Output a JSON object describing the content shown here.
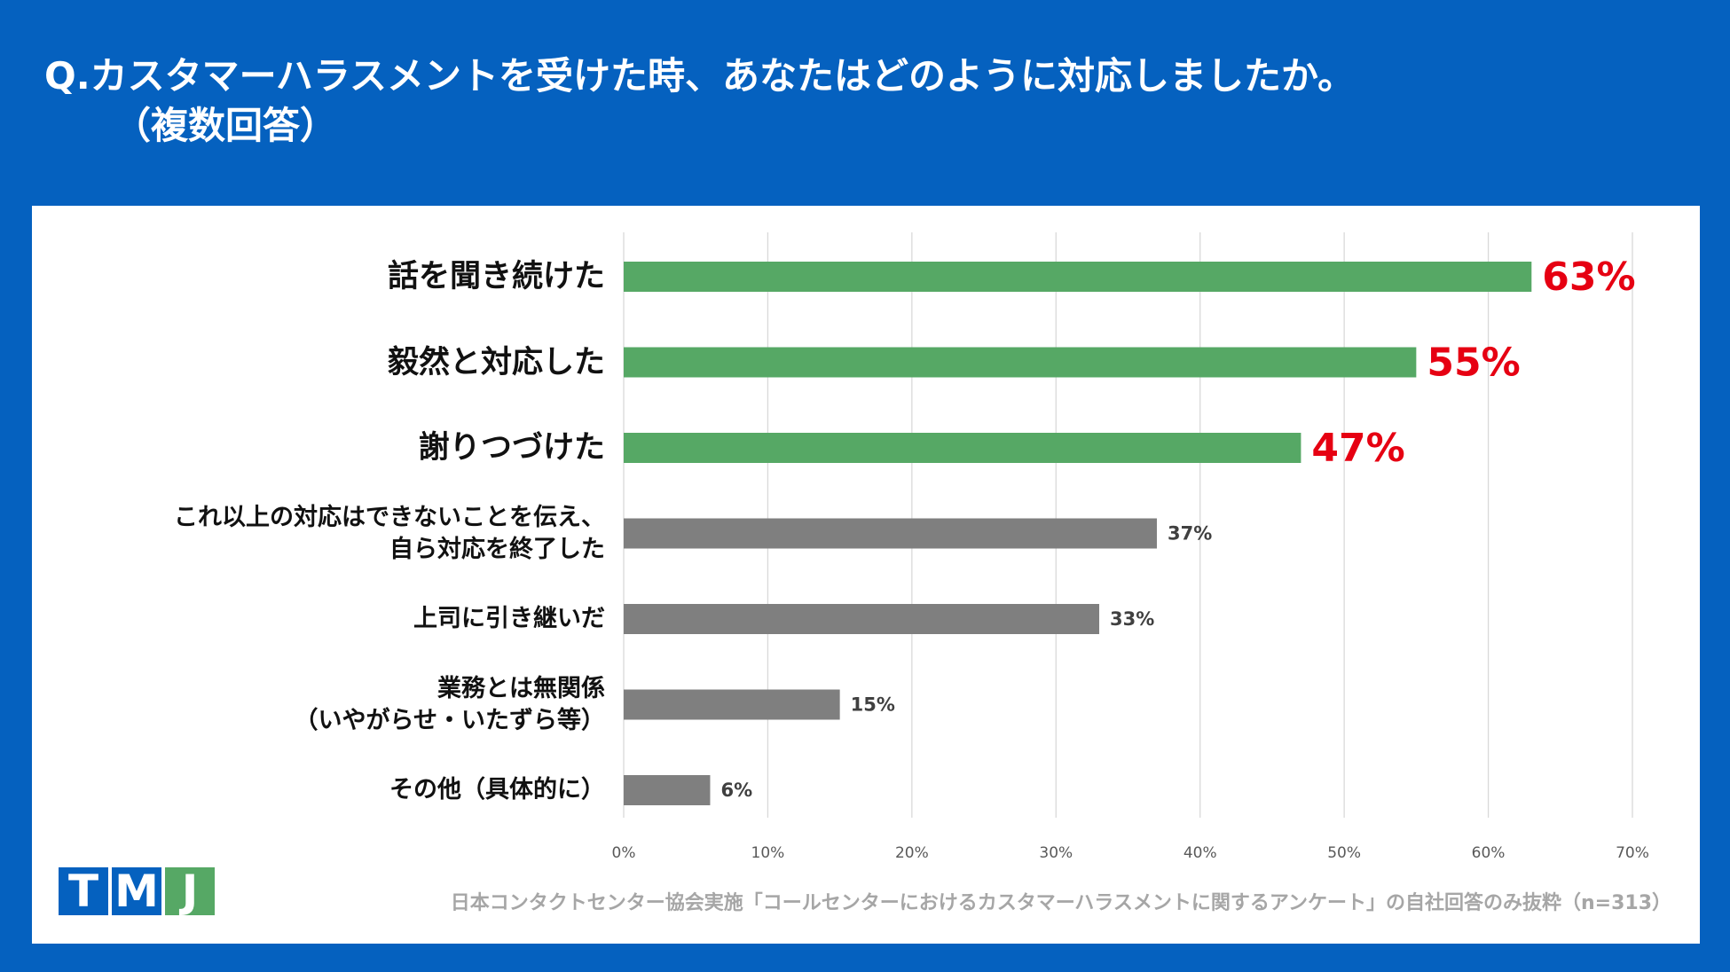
{
  "header": {
    "title_line1": "Q.カスタマーハラスメントを受けた時、あなたはどのように対応しましたか。",
    "title_line2": "（複数回答）"
  },
  "colors": {
    "background": "#0561bf",
    "highlight_bar": "#56a865",
    "normal_bar": "#7f7f7f",
    "highlight_label": "#e60012",
    "normal_label": "#404040",
    "gridline": "#d9d9d9"
  },
  "chart_data": {
    "type": "bar",
    "orientation": "horizontal",
    "categories": [
      [
        "話を聞き続けた"
      ],
      [
        "毅然と対応した"
      ],
      [
        "謝りつづけた"
      ],
      [
        "これ以上の対応はできないことを伝え、",
        "自ら対応を終了した"
      ],
      [
        "上司に引き継いだ"
      ],
      [
        "業務とは無関係",
        "（いやがらせ・いたずら等）"
      ],
      [
        "その他（具体的に）"
      ]
    ],
    "values": [
      63,
      55,
      47,
      37,
      33,
      15,
      6
    ],
    "value_labels": [
      "63%",
      "55%",
      "47%",
      "37%",
      "33%",
      "15%",
      "6%"
    ],
    "highlighted": [
      true,
      true,
      true,
      false,
      false,
      false,
      false
    ],
    "xlim": [
      0,
      70
    ],
    "xticks": [
      "0%",
      "10%",
      "20%",
      "30%",
      "40%",
      "50%",
      "60%",
      "70%"
    ],
    "grid": true,
    "title": "",
    "xlabel": "",
    "ylabel": ""
  },
  "logo": {
    "letters": [
      "T",
      "M",
      "J"
    ]
  },
  "footnote": "日本コンタクトセンター協会実施「コールセンターにおけるカスタマーハラスメントに関するアンケート」の自社回答のみ抜粋（n=313）"
}
